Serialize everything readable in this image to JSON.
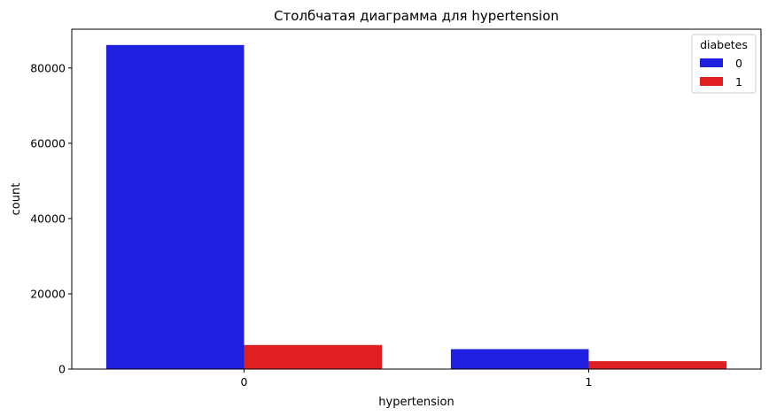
{
  "chart_data": {
    "type": "bar",
    "title": "Столбчатая диаграмма для hypertension",
    "xlabel": "hypertension",
    "ylabel": "count",
    "categories": [
      "0",
      "1"
    ],
    "ylim": [
      0,
      90300
    ],
    "yticks": [
      0,
      20000,
      40000,
      60000,
      80000
    ],
    "grid": false,
    "legend": {
      "title": "diabetes",
      "placement": "top-right"
    },
    "series": [
      {
        "name": "0",
        "color": "#2020e0",
        "values": [
          86100,
          5300
        ]
      },
      {
        "name": "1",
        "color": "#e02020",
        "values": [
          6400,
          2100
        ]
      }
    ]
  }
}
